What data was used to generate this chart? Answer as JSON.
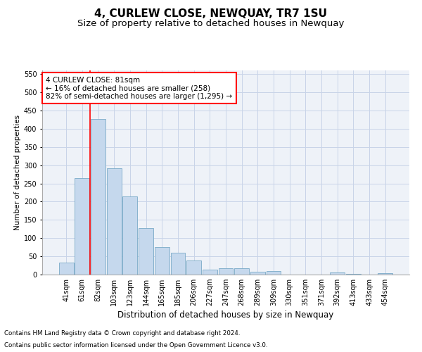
{
  "title": "4, CURLEW CLOSE, NEWQUAY, TR7 1SU",
  "subtitle": "Size of property relative to detached houses in Newquay",
  "xlabel": "Distribution of detached houses by size in Newquay",
  "ylabel": "Number of detached properties",
  "categories": [
    "41sqm",
    "61sqm",
    "82sqm",
    "103sqm",
    "123sqm",
    "144sqm",
    "165sqm",
    "185sqm",
    "206sqm",
    "227sqm",
    "247sqm",
    "268sqm",
    "289sqm",
    "309sqm",
    "330sqm",
    "351sqm",
    "371sqm",
    "392sqm",
    "413sqm",
    "433sqm",
    "454sqm"
  ],
  "values": [
    32,
    265,
    427,
    292,
    215,
    128,
    76,
    60,
    39,
    13,
    17,
    18,
    7,
    10,
    0,
    0,
    0,
    5,
    2,
    0,
    3
  ],
  "bar_color": "#c5d8ed",
  "bar_edge_color": "#7aaac8",
  "bar_linewidth": 0.6,
  "vline_index": 2,
  "annotation_text_line1": "4 CURLEW CLOSE: 81sqm",
  "annotation_text_line2": "← 16% of detached houses are smaller (258)",
  "annotation_text_line3": "82% of semi-detached houses are larger (1,295) →",
  "annotation_box_color": "white",
  "annotation_box_edge_color": "red",
  "vline_color": "red",
  "vline_linewidth": 1.2,
  "grid_color": "#c8d4e8",
  "background_color": "#eef2f8",
  "ylim": [
    0,
    560
  ],
  "yticks": [
    0,
    50,
    100,
    150,
    200,
    250,
    300,
    350,
    400,
    450,
    500,
    550
  ],
  "footnote1": "Contains HM Land Registry data © Crown copyright and database right 2024.",
  "footnote2": "Contains public sector information licensed under the Open Government Licence v3.0.",
  "title_fontsize": 11,
  "subtitle_fontsize": 9.5,
  "xlabel_fontsize": 8.5,
  "ylabel_fontsize": 7.5,
  "tick_fontsize": 7,
  "annotation_fontsize": 7.5,
  "footnote_fontsize": 6.2
}
